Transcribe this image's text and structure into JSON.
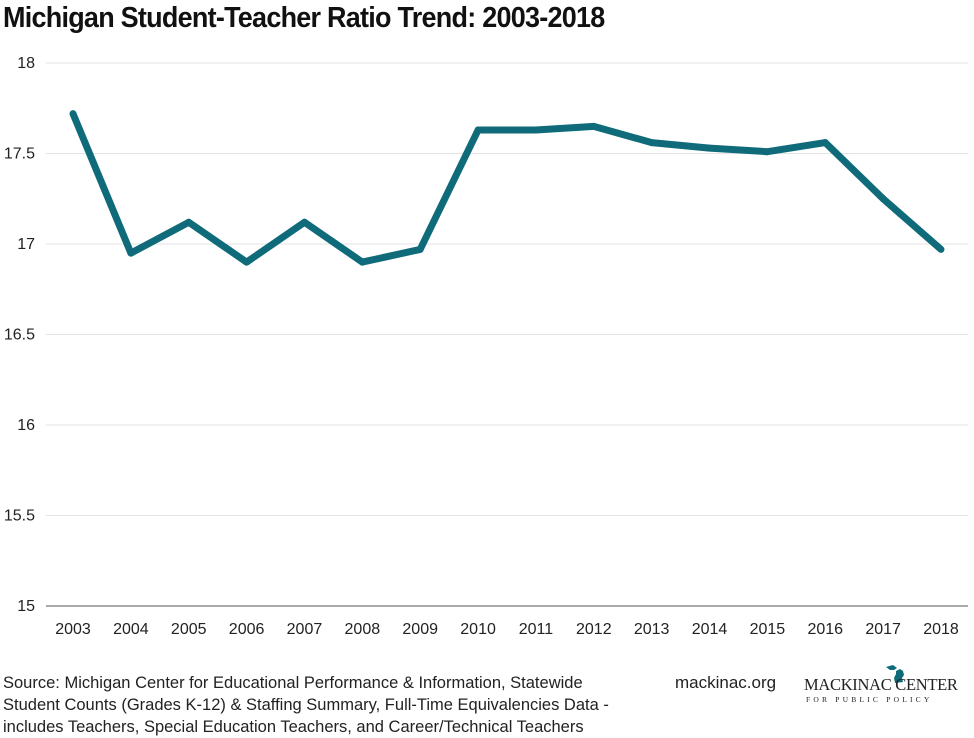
{
  "chart_data": {
    "type": "line",
    "title": "Michigan Student-Teacher Ratio Trend: 2003-2018",
    "xlabel": "",
    "ylabel": "",
    "x": [
      "2003",
      "2004",
      "2005",
      "2006",
      "2007",
      "2008",
      "2009",
      "2010",
      "2011",
      "2012",
      "2013",
      "2014",
      "2015",
      "2016",
      "2017",
      "2018"
    ],
    "series": [
      {
        "name": "Student-Teacher Ratio",
        "values": [
          17.72,
          16.95,
          17.12,
          16.9,
          17.12,
          16.9,
          16.97,
          17.63,
          17.63,
          17.65,
          17.56,
          17.53,
          17.51,
          17.56,
          17.25,
          16.97
        ],
        "color": "#0f6b7a"
      }
    ],
    "ylim": [
      15,
      18
    ],
    "yticks": [
      15,
      15.5,
      16,
      16.5,
      17,
      17.5,
      18
    ],
    "ytick_labels": [
      "15",
      "15.5",
      "16",
      "16.5",
      "17",
      "17.5",
      "18"
    ],
    "grid": true,
    "legend": "none"
  },
  "footer": {
    "source": "Source: Michigan Center for Educational Performance & Information, Statewide Student Counts (Grades K-12) & Staffing Summary, Full-Time Equivalencies Data - includes Teachers, Special Education Teachers, and Career/Technical Teachers",
    "site": "mackinac.org"
  },
  "logo": {
    "main": "MACKINAC CENTER",
    "sub": "FOR PUBLIC POLICY",
    "icon": "michigan-map-icon"
  },
  "colors": {
    "line": "#0f6b7a",
    "grid": "#e3e3e3",
    "axis": "#555555",
    "logo_icon": "#0f6b7a"
  }
}
